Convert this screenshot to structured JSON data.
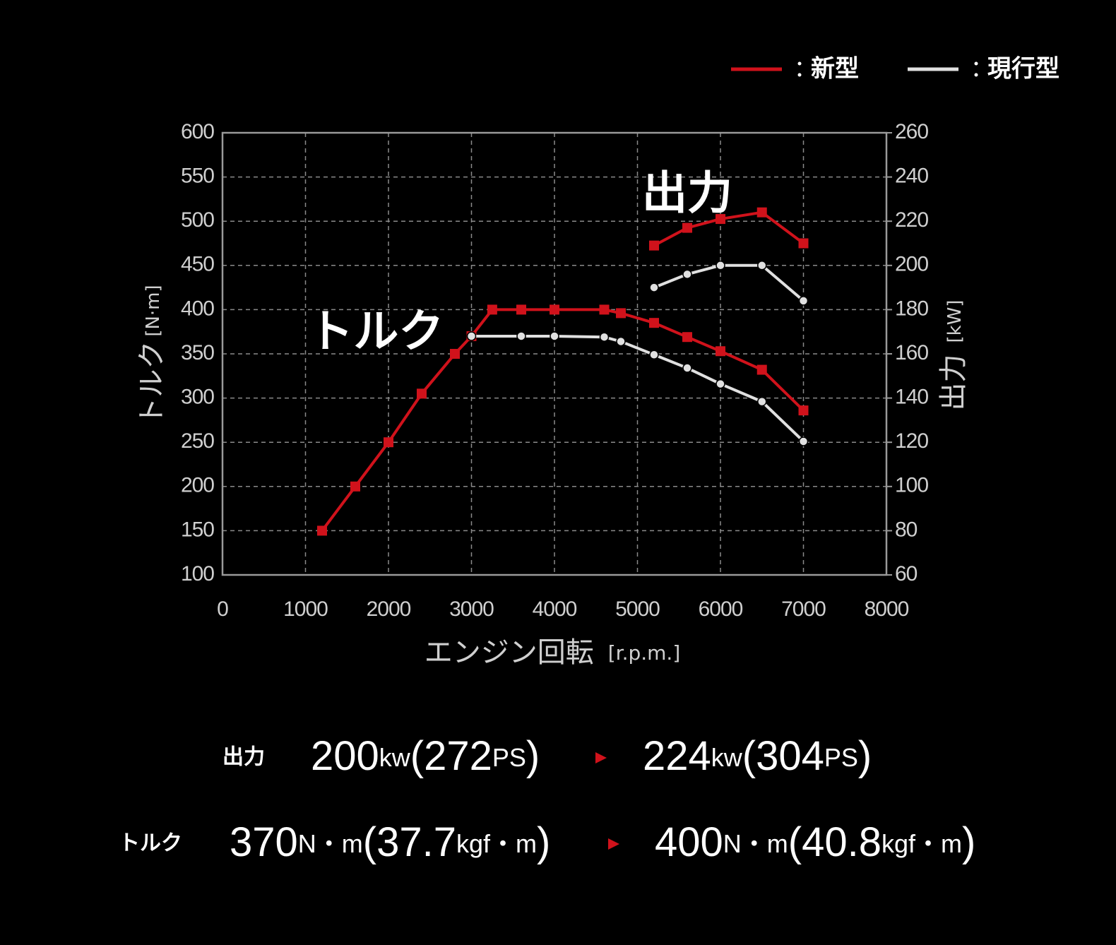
{
  "chart_data": {
    "type": "line",
    "xlabel": "エンジン回転",
    "xlabel_unit": "[r.p.m.]",
    "ylabel": "トルク",
    "ylabel_unit": "[N·m]",
    "y2label": "出力",
    "y2label_unit": "[kW]",
    "annotations": [
      {
        "text": "出力",
        "x": 5600,
        "y": 528
      },
      {
        "text": "トルク",
        "x": 1850,
        "y": 372
      }
    ],
    "xlim": [
      0,
      8000
    ],
    "xticks": [
      0,
      1000,
      2000,
      3000,
      4000,
      5000,
      6000,
      7000,
      8000
    ],
    "ylim": [
      100,
      600
    ],
    "yticks": [
      100,
      150,
      200,
      250,
      300,
      350,
      400,
      450,
      500,
      550,
      600
    ],
    "y2lim": [
      60,
      260
    ],
    "y2ticks": [
      60,
      80,
      100,
      120,
      140,
      160,
      180,
      200,
      220,
      240,
      260
    ],
    "grid": true,
    "series": [
      {
        "name": "新型",
        "color": "#d0121b",
        "marker": "square",
        "axis": "y",
        "x": [
          1200,
          1600,
          2000,
          2400,
          2800,
          3000,
          3250,
          3600,
          4000,
          4600,
          4800,
          5200,
          5600,
          6000,
          6500,
          7000
        ],
        "values": [
          150,
          200,
          250,
          305,
          350,
          370,
          400,
          400,
          400,
          400,
          396,
          385,
          369,
          353,
          332,
          286
        ]
      },
      {
        "name": "現行型",
        "color": "#e0e0e0",
        "marker": "circle",
        "axis": "y",
        "x": [
          3000,
          3600,
          4000,
          4600,
          4800,
          5200,
          5600,
          6000,
          6500,
          7000
        ],
        "values": [
          370,
          370,
          370,
          369,
          364,
          349,
          334,
          316,
          296,
          251
        ]
      },
      {
        "name": "新型",
        "color": "#d0121b",
        "marker": "square",
        "axis": "y2",
        "x": [
          5200,
          5600,
          6000,
          6500,
          7000
        ],
        "values": [
          209,
          217,
          221,
          224,
          210
        ]
      },
      {
        "name": "現行型",
        "color": "#e0e0e0",
        "marker": "circle",
        "axis": "y2",
        "x": [
          5200,
          5600,
          6000,
          6500,
          7000
        ],
        "values": [
          190,
          196,
          200,
          200,
          184
        ]
      }
    ]
  },
  "specs": [
    {
      "label": "出力",
      "from": [
        "200",
        "kw",
        "(272",
        "PS",
        ")"
      ],
      "to": [
        "224",
        "kw",
        "(304",
        "PS",
        ")"
      ]
    },
    {
      "label": "トルク",
      "from": [
        "370",
        "N・m",
        "(37.7",
        "kgf・m",
        ")"
      ],
      "to": [
        "400",
        "N・m",
        "(40.8",
        "kgf・m",
        ")"
      ]
    }
  ]
}
